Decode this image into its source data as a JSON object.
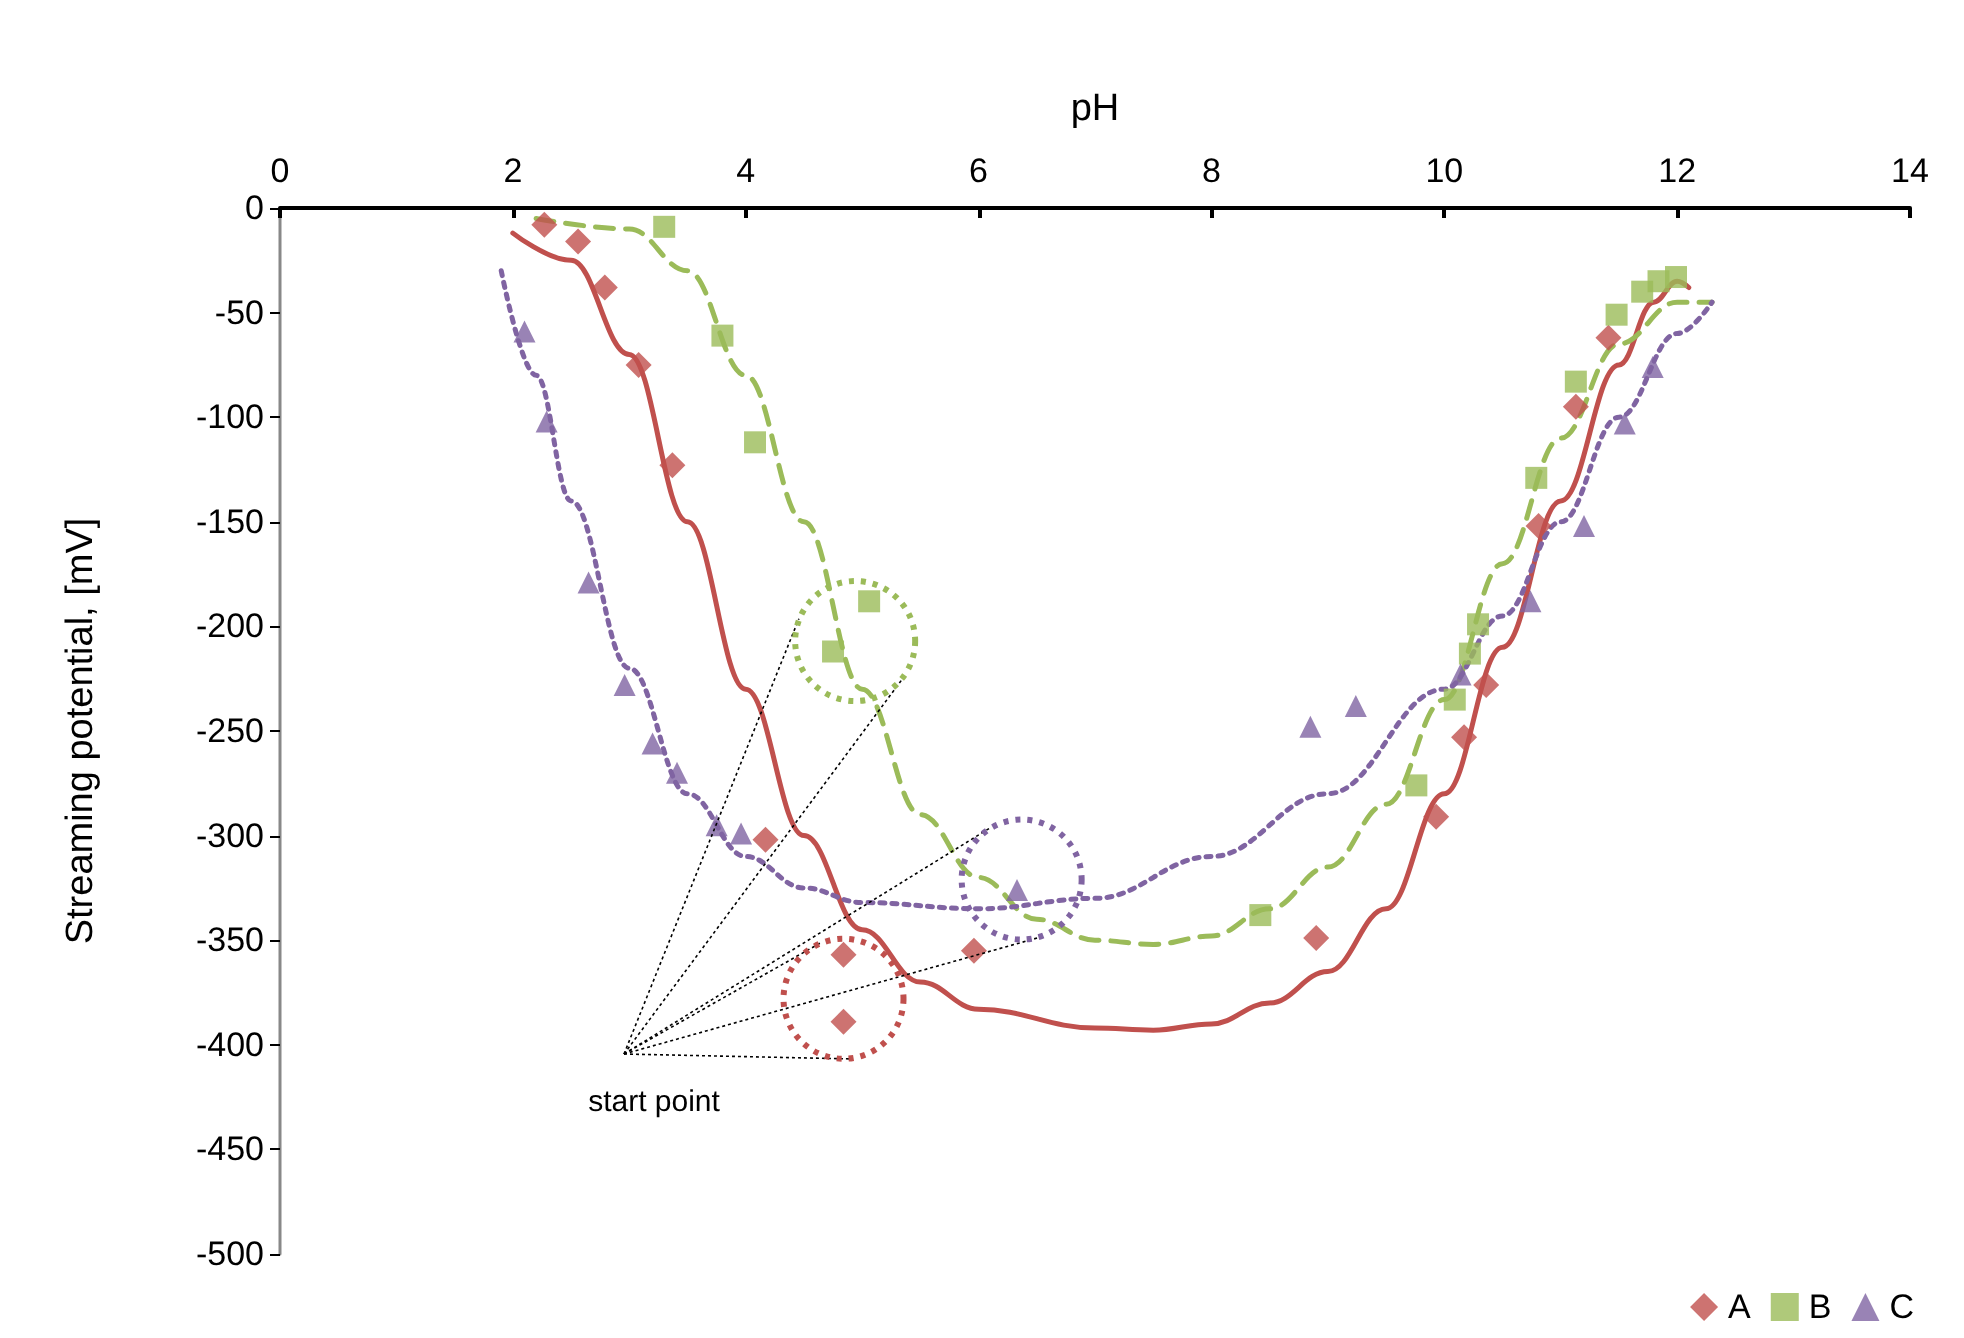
{
  "chart_data": {
    "type": "scatter",
    "xlabel": "pH",
    "ylabel": "Streaming potential, [mV]",
    "xlim": [
      0,
      14
    ],
    "xticks": [
      0,
      2,
      4,
      6,
      8,
      10,
      12,
      14
    ],
    "ylim": [
      -500,
      0
    ],
    "yticks": [
      -500,
      -450,
      -400,
      -350,
      -300,
      -250,
      -200,
      -150,
      -100,
      -50,
      0
    ],
    "grid": false,
    "legend": "bottom right",
    "annotations": [
      "start point"
    ],
    "series": [
      {
        "name": "A",
        "marker": "diamond",
        "color": "#c0504d",
        "x": [
          2.27,
          2.56,
          2.79,
          3.08,
          3.37,
          4.17,
          4.84,
          4.84,
          5.96,
          8.9,
          9.93,
          10.17,
          10.36,
          10.81,
          11.13,
          11.41
        ],
        "values": [
          -8,
          -16,
          -38,
          -75,
          -123,
          -302,
          -357,
          -389,
          -355,
          -349,
          -291,
          -253,
          -228,
          -152,
          -95,
          -62
        ]
      },
      {
        "name": "B",
        "marker": "square",
        "color": "#9bbb59",
        "x": [
          3.3,
          3.8,
          4.08,
          4.75,
          5.06,
          8.42,
          9.76,
          10.09,
          10.22,
          10.29,
          10.79,
          11.13,
          11.48,
          11.7,
          11.84,
          11.99
        ],
        "values": [
          -9,
          -61,
          -112,
          -212,
          -188,
          -338,
          -276,
          -235,
          -213,
          -199,
          -129,
          -83,
          -51,
          -40,
          -35,
          -33
        ]
      },
      {
        "name": "C",
        "marker": "triangle",
        "color": "#8064a2",
        "x": [
          2.1,
          2.29,
          2.65,
          2.96,
          3.2,
          3.41,
          3.75,
          3.96,
          6.33,
          8.85,
          9.24,
          10.14,
          10.74,
          11.2,
          11.55,
          11.79
        ],
        "values": [
          -59,
          -102,
          -179,
          -228,
          -256,
          -270,
          -295,
          -299,
          -326,
          -248,
          -238,
          -223,
          -188,
          -152,
          -103,
          -76
        ]
      },
      {
        "type": "line",
        "marker": "none",
        "line_style": "solid",
        "color": "#c0504d",
        "x": [
          2.0,
          2.5,
          3.0,
          3.5,
          4.0,
          4.5,
          5.0,
          5.5,
          6.0,
          7.0,
          7.5,
          8.0,
          8.5,
          9.0,
          9.5,
          10.0,
          10.5,
          11.0,
          11.5,
          11.8,
          12.0,
          12.1
        ],
        "values": [
          -12,
          -25,
          -70,
          -150,
          -230,
          -300,
          -345,
          -370,
          -383,
          -392,
          -393,
          -390,
          -380,
          -365,
          -335,
          -280,
          -210,
          -140,
          -75,
          -45,
          -35,
          -38
        ]
      },
      {
        "type": "line",
        "marker": "none",
        "line_style": "dashed",
        "color": "#9bbb59",
        "x": [
          2.2,
          3.0,
          3.5,
          4.0,
          4.5,
          5.0,
          5.5,
          6.0,
          6.5,
          7.0,
          7.5,
          8.0,
          8.5,
          9.0,
          9.5,
          10.0,
          10.5,
          11.0,
          11.5,
          12.0,
          12.3
        ],
        "values": [
          -5,
          -10,
          -30,
          -80,
          -150,
          -230,
          -290,
          -320,
          -340,
          -350,
          -352,
          -348,
          -335,
          -315,
          -285,
          -235,
          -170,
          -110,
          -65,
          -45,
          -45
        ]
      },
      {
        "type": "line",
        "marker": "none",
        "line_style": "dotted",
        "color": "#8064a2",
        "x": [
          1.9,
          2.2,
          2.5,
          3.0,
          3.5,
          4.0,
          4.5,
          5.0,
          6.0,
          7.0,
          8.0,
          9.0,
          10.0,
          10.5,
          11.0,
          11.5,
          12.0,
          12.3
        ],
        "values": [
          -30,
          -80,
          -140,
          -220,
          -280,
          -310,
          -325,
          -332,
          -335,
          -330,
          -310,
          -280,
          -230,
          -195,
          -150,
          -100,
          -60,
          -45
        ]
      }
    ]
  }
}
